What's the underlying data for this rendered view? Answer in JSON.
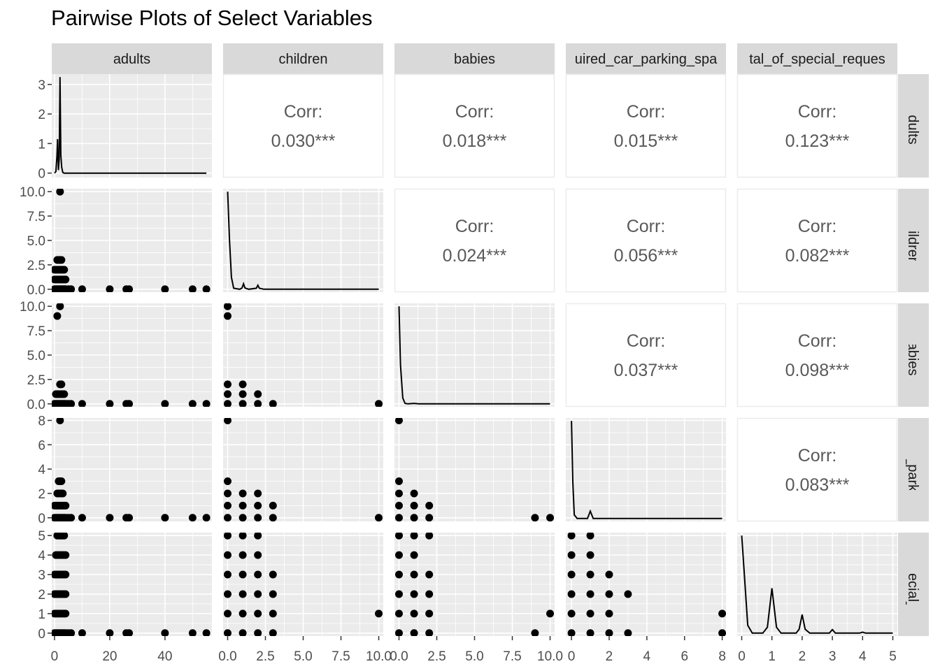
{
  "title": "Pairwise Plots of Select Variables",
  "colors": {
    "panel_bg": "#ebebeb",
    "grid": "#ffffff",
    "strip_bg": "#d9d9d9",
    "point": "#000000",
    "line": "#000000",
    "corr_text": "#595959",
    "corr_border": "#ebebeb"
  },
  "chart_data": {
    "type": "scatter",
    "variables": [
      "adults",
      "children",
      "babies",
      "required_car_parking_spaces",
      "total_of_special_requests"
    ],
    "column_strip_labels": [
      "adults",
      "children",
      "babies",
      "uired_car_parking_spa",
      "tal_of_special_reques"
    ],
    "row_strip_labels": [
      "adults",
      "children",
      "babies",
      "d_car_parking_",
      "of_special_req"
    ],
    "axes": [
      {
        "range": [
          -1,
          57
        ],
        "ticks": [
          0,
          20,
          40
        ],
        "tick_labels": [
          "0",
          "20",
          "40"
        ]
      },
      {
        "range": [
          -0.3,
          10.3
        ],
        "ticks": [
          0,
          2.5,
          5,
          7.5,
          10
        ],
        "tick_labels": [
          "0.0",
          "2.5",
          "5.0",
          "7.5",
          "10.0"
        ]
      },
      {
        "range": [
          -0.3,
          10.3
        ],
        "ticks": [
          0,
          2.5,
          5,
          7.5,
          10
        ],
        "tick_labels": [
          "0.0",
          "2.5",
          "5.0",
          "7.5",
          "10.0"
        ]
      },
      {
        "range": [
          -0.3,
          8.2
        ],
        "ticks": [
          0,
          2,
          4,
          6,
          8
        ],
        "tick_labels": [
          "0",
          "2",
          "4",
          "6",
          "8"
        ]
      },
      {
        "range": [
          -0.15,
          5.15
        ],
        "ticks": [
          0,
          1,
          2,
          3,
          4,
          5
        ],
        "tick_labels": [
          "0",
          "1",
          "2",
          "3",
          "4",
          "5"
        ]
      }
    ],
    "diag_y_axis": {
      "range": [
        -0.15,
        3.35
      ],
      "ticks": [
        0,
        1,
        2,
        3
      ],
      "tick_labels": [
        "0",
        "1",
        "2",
        "3"
      ]
    },
    "correlations": [
      {
        "row": 0,
        "col": 1,
        "label": "Corr:",
        "value": "0.030***"
      },
      {
        "row": 0,
        "col": 2,
        "label": "Corr:",
        "value": "0.018***"
      },
      {
        "row": 0,
        "col": 3,
        "label": "Corr:",
        "value": "0.015***"
      },
      {
        "row": 0,
        "col": 4,
        "label": "Corr:",
        "value": "0.123***"
      },
      {
        "row": 1,
        "col": 2,
        "label": "Corr:",
        "value": "0.024***"
      },
      {
        "row": 1,
        "col": 3,
        "label": "Corr:",
        "value": "0.056***"
      },
      {
        "row": 1,
        "col": 4,
        "label": "Corr:",
        "value": "0.082***"
      },
      {
        "row": 2,
        "col": 3,
        "label": "Corr:",
        "value": "0.037***"
      },
      {
        "row": 2,
        "col": 4,
        "label": "Corr:",
        "value": "0.098***"
      },
      {
        "row": 3,
        "col": 4,
        "label": "Corr:",
        "value": "0.083***"
      }
    ],
    "density": [
      [
        [
          0,
          0
        ],
        [
          0.5,
          0.05
        ],
        [
          0.9,
          0.6
        ],
        [
          1.1,
          1.15
        ],
        [
          1.4,
          0.1
        ],
        [
          1.7,
          0.5
        ],
        [
          2.0,
          3.25
        ],
        [
          2.3,
          0.6
        ],
        [
          2.6,
          0.2
        ],
        [
          3.0,
          0.02
        ],
        [
          3.5,
          0
        ],
        [
          10,
          0
        ],
        [
          55,
          0
        ]
      ],
      [
        [
          0,
          9.8
        ],
        [
          0.12,
          5
        ],
        [
          0.25,
          1.2
        ],
        [
          0.4,
          0.1
        ],
        [
          0.8,
          0
        ],
        [
          0.95,
          0.12
        ],
        [
          1.05,
          0.55
        ],
        [
          1.15,
          0.12
        ],
        [
          1.4,
          0
        ],
        [
          1.9,
          0.1
        ],
        [
          2.0,
          0.4
        ],
        [
          2.1,
          0.1
        ],
        [
          2.4,
          0
        ],
        [
          10,
          0
        ]
      ],
      [
        [
          0,
          10
        ],
        [
          0.1,
          4
        ],
        [
          0.25,
          0.6
        ],
        [
          0.4,
          0.05
        ],
        [
          0.6,
          0
        ],
        [
          1.0,
          0.05
        ],
        [
          1.3,
          0
        ],
        [
          10,
          0
        ]
      ],
      [
        [
          0,
          8
        ],
        [
          0.07,
          3
        ],
        [
          0.15,
          0.3
        ],
        [
          0.3,
          0
        ],
        [
          0.85,
          0
        ],
        [
          1.0,
          0.6
        ],
        [
          1.15,
          0
        ],
        [
          8,
          0
        ]
      ],
      [
        [
          0,
          5
        ],
        [
          0.08,
          3.2
        ],
        [
          0.2,
          0.4
        ],
        [
          0.35,
          0
        ],
        [
          0.7,
          0
        ],
        [
          0.85,
          0.3
        ],
        [
          1.0,
          2.3
        ],
        [
          1.15,
          0.3
        ],
        [
          1.3,
          0
        ],
        [
          1.8,
          0
        ],
        [
          1.9,
          0.2
        ],
        [
          2.0,
          0.95
        ],
        [
          2.1,
          0.2
        ],
        [
          2.25,
          0
        ],
        [
          2.9,
          0
        ],
        [
          3.0,
          0.18
        ],
        [
          3.1,
          0
        ],
        [
          3.9,
          0
        ],
        [
          4.0,
          0.05
        ],
        [
          4.1,
          0
        ],
        [
          5,
          0
        ]
      ]
    ],
    "scatter": {
      "1,0": [
        [
          0,
          0
        ],
        [
          0.3,
          0
        ],
        [
          0.7,
          0
        ],
        [
          1,
          0
        ],
        [
          1.3,
          0
        ],
        [
          1.7,
          0
        ],
        [
          2,
          0
        ],
        [
          2.3,
          0
        ],
        [
          2.7,
          0
        ],
        [
          3,
          0
        ],
        [
          3.4,
          0
        ],
        [
          3.8,
          0
        ],
        [
          4,
          0
        ],
        [
          5,
          0
        ],
        [
          6,
          0
        ],
        [
          10,
          0
        ],
        [
          20,
          0
        ],
        [
          26,
          0
        ],
        [
          27,
          0
        ],
        [
          40,
          0
        ],
        [
          50,
          0
        ],
        [
          55,
          0
        ],
        [
          0,
          1
        ],
        [
          0.5,
          1
        ],
        [
          1,
          1
        ],
        [
          1.5,
          1
        ],
        [
          2,
          1
        ],
        [
          2.5,
          1
        ],
        [
          3,
          1
        ],
        [
          3.5,
          1
        ],
        [
          4,
          1
        ],
        [
          0,
          2
        ],
        [
          0.5,
          2
        ],
        [
          1,
          2
        ],
        [
          1.5,
          2
        ],
        [
          2,
          2
        ],
        [
          2.5,
          2
        ],
        [
          3,
          2
        ],
        [
          3.5,
          2
        ],
        [
          1,
          3
        ],
        [
          1.5,
          3
        ],
        [
          2,
          3
        ],
        [
          2.5,
          3
        ],
        [
          2,
          10
        ]
      ],
      "2,0": [
        [
          0,
          0
        ],
        [
          0.5,
          0
        ],
        [
          1,
          0
        ],
        [
          1.5,
          0
        ],
        [
          2,
          0
        ],
        [
          2.5,
          0
        ],
        [
          3,
          0
        ],
        [
          3.5,
          0
        ],
        [
          4,
          0
        ],
        [
          5,
          0
        ],
        [
          6,
          0
        ],
        [
          10,
          0
        ],
        [
          20,
          0
        ],
        [
          26,
          0
        ],
        [
          27,
          0
        ],
        [
          40,
          0
        ],
        [
          50,
          0
        ],
        [
          55,
          0
        ],
        [
          0.5,
          1
        ],
        [
          1,
          1
        ],
        [
          1.5,
          1
        ],
        [
          2,
          1
        ],
        [
          2.5,
          1
        ],
        [
          3,
          1
        ],
        [
          3.5,
          1
        ],
        [
          2,
          2
        ],
        [
          2.5,
          2
        ],
        [
          1,
          9
        ],
        [
          2,
          10
        ]
      ],
      "2,1": [
        [
          0,
          0
        ],
        [
          1,
          0
        ],
        [
          2,
          0
        ],
        [
          3,
          0
        ],
        [
          10,
          0
        ],
        [
          0,
          1
        ],
        [
          1,
          1
        ],
        [
          2,
          1
        ],
        [
          0,
          2
        ],
        [
          1,
          2
        ],
        [
          0,
          9
        ],
        [
          0,
          10
        ]
      ],
      "3,0": [
        [
          0,
          0
        ],
        [
          0.5,
          0
        ],
        [
          1,
          0
        ],
        [
          1.5,
          0
        ],
        [
          2,
          0
        ],
        [
          2.5,
          0
        ],
        [
          3,
          0
        ],
        [
          3.5,
          0
        ],
        [
          4,
          0
        ],
        [
          5,
          0
        ],
        [
          6,
          0
        ],
        [
          10,
          0
        ],
        [
          20,
          0
        ],
        [
          26,
          0
        ],
        [
          27,
          0
        ],
        [
          40,
          0
        ],
        [
          50,
          0
        ],
        [
          55,
          0
        ],
        [
          0,
          1
        ],
        [
          0.5,
          1
        ],
        [
          1,
          1
        ],
        [
          1.5,
          1
        ],
        [
          2,
          1
        ],
        [
          2.5,
          1
        ],
        [
          3,
          1
        ],
        [
          3.5,
          1
        ],
        [
          4,
          1
        ],
        [
          1,
          2
        ],
        [
          1.5,
          2
        ],
        [
          2,
          2
        ],
        [
          2.5,
          2
        ],
        [
          3,
          2
        ],
        [
          1.5,
          3
        ],
        [
          2,
          3
        ],
        [
          2.5,
          3
        ],
        [
          2,
          8
        ]
      ],
      "3,1": [
        [
          0,
          0
        ],
        [
          1,
          0
        ],
        [
          2,
          0
        ],
        [
          3,
          0
        ],
        [
          10,
          0
        ],
        [
          0,
          1
        ],
        [
          1,
          1
        ],
        [
          2,
          1
        ],
        [
          3,
          1
        ],
        [
          0,
          2
        ],
        [
          1,
          2
        ],
        [
          2,
          2
        ],
        [
          0,
          3
        ],
        [
          0,
          8
        ]
      ],
      "3,2": [
        [
          0,
          0
        ],
        [
          1,
          0
        ],
        [
          2,
          0
        ],
        [
          9,
          0
        ],
        [
          10,
          0
        ],
        [
          0,
          1
        ],
        [
          1,
          1
        ],
        [
          2,
          1
        ],
        [
          0,
          2
        ],
        [
          1,
          2
        ],
        [
          0,
          3
        ],
        [
          0,
          8
        ]
      ],
      "4,0": [
        [
          0,
          0
        ],
        [
          0.5,
          0
        ],
        [
          1,
          0
        ],
        [
          1.5,
          0
        ],
        [
          2,
          0
        ],
        [
          2.5,
          0
        ],
        [
          3,
          0
        ],
        [
          3.5,
          0
        ],
        [
          4,
          0
        ],
        [
          5,
          0
        ],
        [
          6,
          0
        ],
        [
          10,
          0
        ],
        [
          20,
          0
        ],
        [
          26,
          0
        ],
        [
          27,
          0
        ],
        [
          40,
          0
        ],
        [
          50,
          0
        ],
        [
          55,
          0
        ],
        [
          0,
          1
        ],
        [
          0.5,
          1
        ],
        [
          1,
          1
        ],
        [
          1.5,
          1
        ],
        [
          2,
          1
        ],
        [
          2.5,
          1
        ],
        [
          3,
          1
        ],
        [
          3.5,
          1
        ],
        [
          4,
          1
        ],
        [
          0,
          2
        ],
        [
          0.5,
          2
        ],
        [
          1,
          2
        ],
        [
          1.5,
          2
        ],
        [
          2,
          2
        ],
        [
          2.5,
          2
        ],
        [
          3,
          2
        ],
        [
          3.5,
          2
        ],
        [
          4,
          2
        ],
        [
          0,
          3
        ],
        [
          0.5,
          3
        ],
        [
          1,
          3
        ],
        [
          1.5,
          3
        ],
        [
          2,
          3
        ],
        [
          2.5,
          3
        ],
        [
          3,
          3
        ],
        [
          3.5,
          3
        ],
        [
          4,
          3
        ],
        [
          0.5,
          4
        ],
        [
          1,
          4
        ],
        [
          1.5,
          4
        ],
        [
          2,
          4
        ],
        [
          2.5,
          4
        ],
        [
          3,
          4
        ],
        [
          3.5,
          4
        ],
        [
          4,
          4
        ],
        [
          1,
          5
        ],
        [
          1.5,
          5
        ],
        [
          2,
          5
        ],
        [
          2.5,
          5
        ],
        [
          3,
          5
        ],
        [
          3.5,
          5
        ]
      ],
      "4,1": [
        [
          0,
          0
        ],
        [
          1,
          0
        ],
        [
          2,
          0
        ],
        [
          3,
          0
        ],
        [
          0,
          1
        ],
        [
          1,
          1
        ],
        [
          2,
          1
        ],
        [
          3,
          1
        ],
        [
          10,
          1
        ],
        [
          0,
          2
        ],
        [
          1,
          2
        ],
        [
          2,
          2
        ],
        [
          3,
          2
        ],
        [
          0,
          3
        ],
        [
          1,
          3
        ],
        [
          2,
          3
        ],
        [
          3,
          3
        ],
        [
          0,
          4
        ],
        [
          1,
          4
        ],
        [
          2,
          4
        ],
        [
          0,
          5
        ],
        [
          1,
          5
        ],
        [
          2,
          5
        ]
      ],
      "4,2": [
        [
          0,
          0
        ],
        [
          1,
          0
        ],
        [
          2,
          0
        ],
        [
          9,
          0
        ],
        [
          0,
          1
        ],
        [
          1,
          1
        ],
        [
          2,
          1
        ],
        [
          10,
          1
        ],
        [
          0,
          2
        ],
        [
          1,
          2
        ],
        [
          2,
          2
        ],
        [
          0,
          3
        ],
        [
          1,
          3
        ],
        [
          2,
          3
        ],
        [
          0,
          4
        ],
        [
          1,
          4
        ],
        [
          0,
          5
        ],
        [
          1,
          5
        ],
        [
          2,
          5
        ]
      ],
      "4,3": [
        [
          0,
          0
        ],
        [
          1,
          0
        ],
        [
          2,
          0
        ],
        [
          3,
          0
        ],
        [
          8,
          0
        ],
        [
          0,
          1
        ],
        [
          1,
          1
        ],
        [
          2,
          1
        ],
        [
          8,
          1
        ],
        [
          0,
          2
        ],
        [
          1,
          2
        ],
        [
          2,
          2
        ],
        [
          3,
          2
        ],
        [
          0,
          3
        ],
        [
          1,
          3
        ],
        [
          2,
          3
        ],
        [
          0,
          4
        ],
        [
          1,
          4
        ],
        [
          0,
          5
        ],
        [
          1,
          5
        ]
      ]
    }
  }
}
